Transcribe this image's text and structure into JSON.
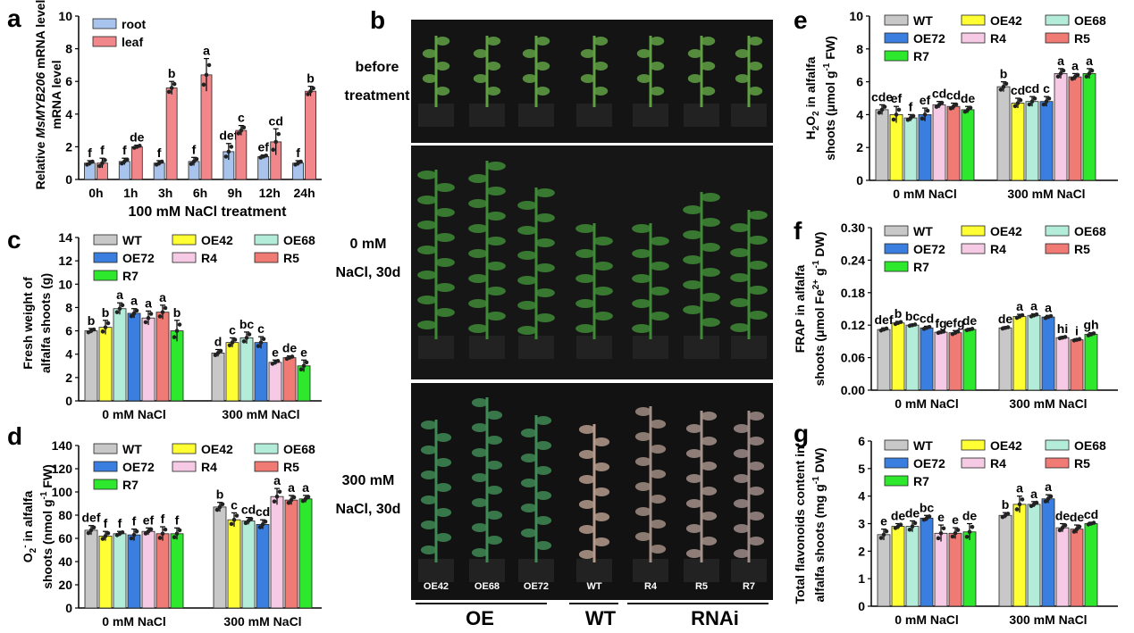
{
  "figure": {
    "panel_letters": [
      "a",
      "b",
      "c",
      "d",
      "e",
      "f",
      "g"
    ]
  },
  "colors": {
    "root": "#a9c4ec",
    "leaf": "#f1878b",
    "WT": "#c8c8c8",
    "OE42": "#ffff33",
    "OE68": "#b3ecd8",
    "OE72": "#3a7fe0",
    "R4": "#f6c9e4",
    "R5": "#f07a74",
    "R7": "#2ee82e"
  },
  "legend_genotypes": [
    "WT",
    "OE42",
    "OE68",
    "OE72",
    "R4",
    "R5",
    "R7"
  ],
  "photo": {
    "row_labels": [
      {
        "line1": "before",
        "line2": "treatment"
      },
      {
        "line1": "0 mM",
        "line2": "NaCl, 30d"
      },
      {
        "line1": "300 mM",
        "line2": "NaCl, 30d"
      }
    ],
    "pot_labels": [
      "OE42",
      "OE68",
      "OE72",
      "WT",
      "R4",
      "R5",
      "R7"
    ],
    "group_labels": [
      "OE",
      "WT",
      "RNAi"
    ]
  },
  "chart_data": [
    {
      "id": "a",
      "type": "bar",
      "ylabel_parts": [
        "Relative ",
        "MsMYB206",
        " mRNA level"
      ],
      "xlabel": "100 mM NaCl treatment",
      "categories": [
        "0h",
        "1h",
        "3h",
        "6h",
        "9h",
        "12h",
        "24h"
      ],
      "ylim": [
        0,
        10
      ],
      "yticks": [
        0,
        2,
        4,
        6,
        8,
        10
      ],
      "tick_decimals": 0,
      "legend_position": "top-left",
      "series": [
        {
          "name": "root",
          "values": [
            1.0,
            1.1,
            1.0,
            1.1,
            1.7,
            1.4,
            1.0
          ],
          "errors": [
            0.15,
            0.2,
            0.15,
            0.25,
            0.5,
            0.1,
            0.15
          ],
          "letters": [
            "f",
            "f",
            "f",
            "f",
            "def",
            "ef",
            "f"
          ]
        },
        {
          "name": "leaf",
          "values": [
            1.0,
            2.0,
            5.6,
            6.4,
            3.0,
            2.3,
            5.4
          ],
          "errors": [
            0.3,
            0.1,
            0.4,
            1.0,
            0.3,
            0.8,
            0.3
          ],
          "letters": [
            "f",
            "de",
            "b",
            "a",
            "c",
            "cd",
            "b"
          ]
        }
      ]
    },
    {
      "id": "c",
      "type": "bar",
      "ylabel_lines": [
        "Fresh weight of",
        "alfalfa shoots (g)"
      ],
      "categories": [
        "0 mM NaCl",
        "300 mM NaCl"
      ],
      "ylim": [
        0,
        14
      ],
      "yticks": [
        0,
        2,
        4,
        6,
        8,
        10,
        12,
        14
      ],
      "tick_decimals": 0,
      "groups": [
        {
          "values": [
            6.0,
            6.3,
            7.9,
            7.5,
            7.1,
            7.6,
            6.0
          ],
          "errors": [
            0.2,
            0.6,
            0.5,
            0.4,
            0.6,
            0.6,
            0.9
          ],
          "letters": [
            "b",
            "b",
            "a",
            "a",
            "a",
            "a",
            "b"
          ]
        },
        {
          "values": [
            4.1,
            5.0,
            5.4,
            5.0,
            3.3,
            3.7,
            3.0
          ],
          "errors": [
            0.3,
            0.4,
            0.5,
            0.5,
            0.2,
            0.15,
            0.5
          ],
          "letters": [
            "d",
            "c",
            "bc",
            "c",
            "e",
            "de",
            "e"
          ]
        }
      ]
    },
    {
      "id": "d",
      "type": "bar",
      "ylabel_lines": [
        "O2- in alfalfa",
        "shoots (nmol g-1 FW)"
      ],
      "categories": [
        "0 mM NaCl",
        "300 mM NaCl"
      ],
      "ylim": [
        0,
        140
      ],
      "yticks": [
        0,
        20,
        40,
        60,
        80,
        100,
        120,
        140
      ],
      "tick_decimals": 0,
      "groups": [
        {
          "values": [
            67,
            62,
            64,
            63,
            66,
            64,
            64
          ],
          "errors": [
            4,
            4,
            2,
            5,
            3,
            6,
            5
          ],
          "letters": [
            "def",
            "f",
            "f",
            "f",
            "ef",
            "f",
            "f"
          ]
        },
        {
          "values": [
            87,
            76,
            75,
            72,
            96,
            93,
            94
          ],
          "errors": [
            4,
            6,
            3,
            4,
            7,
            4,
            3
          ],
          "letters": [
            "b",
            "c",
            "cd",
            "cd",
            "a",
            "a",
            "a"
          ]
        }
      ]
    },
    {
      "id": "e",
      "type": "bar",
      "ylabel_lines": [
        "H2O2 in alfalfa",
        "shoots (μmol g-1 FW)"
      ],
      "categories": [
        "0 mM NaCl",
        "300 mM NaCl"
      ],
      "ylim": [
        0,
        10
      ],
      "yticks": [
        0,
        2,
        4,
        6,
        8,
        10
      ],
      "tick_decimals": 0,
      "groups": [
        {
          "values": [
            4.3,
            4.0,
            3.8,
            4.0,
            4.6,
            4.5,
            4.3
          ],
          "errors": [
            0.3,
            0.5,
            0.2,
            0.4,
            0.2,
            0.2,
            0.2
          ],
          "letters": [
            "cde",
            "ef",
            "f",
            "ef",
            "cd",
            "cd",
            "de"
          ]
        },
        {
          "values": [
            5.7,
            4.7,
            4.8,
            4.8,
            6.5,
            6.3,
            6.5
          ],
          "errors": [
            0.3,
            0.3,
            0.3,
            0.3,
            0.3,
            0.2,
            0.3
          ],
          "letters": [
            "b",
            "cd",
            "cd",
            "c",
            "a",
            "a",
            "a"
          ]
        }
      ]
    },
    {
      "id": "f",
      "type": "bar",
      "ylabel_lines": [
        "FRAP in alfalfa",
        "shoots (μmol Fe2+ g-1 DW)"
      ],
      "categories": [
        "0 mM NaCl",
        "300 mM NaCl"
      ],
      "ylim": [
        0,
        0.3
      ],
      "yticks": [
        0.0,
        0.06,
        0.12,
        0.18,
        0.24,
        0.3
      ],
      "tick_decimals": 2,
      "groups": [
        {
          "values": [
            0.112,
            0.124,
            0.12,
            0.115,
            0.107,
            0.106,
            0.112
          ],
          "errors": [
            0.003,
            0.003,
            0.002,
            0.003,
            0.002,
            0.004,
            0.002
          ],
          "letters": [
            "def",
            "b",
            "bc",
            "cd",
            "fg",
            "efg",
            "de"
          ]
        },
        {
          "values": [
            0.115,
            0.136,
            0.138,
            0.135,
            0.097,
            0.093,
            0.103
          ],
          "errors": [
            0.002,
            0.004,
            0.003,
            0.003,
            0.002,
            0.002,
            0.003
          ],
          "letters": [
            "de",
            "a",
            "a",
            "a",
            "hi",
            "i",
            "gh"
          ]
        }
      ]
    },
    {
      "id": "g",
      "type": "bar",
      "ylabel_lines": [
        "Total flavonoids content in",
        "alfalfa shoots (mg g-1 DW)"
      ],
      "categories": [
        "0 mM NaCl",
        "300 mM NaCl"
      ],
      "ylim": [
        0,
        6
      ],
      "yticks": [
        0,
        1,
        2,
        3,
        4,
        5,
        6
      ],
      "tick_decimals": 0,
      "groups": [
        {
          "values": [
            2.6,
            2.9,
            2.9,
            3.2,
            2.65,
            2.65,
            2.7
          ],
          "errors": [
            0.2,
            0.1,
            0.2,
            0.1,
            0.3,
            0.2,
            0.3
          ],
          "letters": [
            "e",
            "de",
            "de",
            "bc",
            "e",
            "e",
            "de"
          ]
        },
        {
          "values": [
            3.3,
            3.7,
            3.7,
            3.9,
            2.85,
            2.8,
            3.0
          ],
          "errors": [
            0.1,
            0.3,
            0.1,
            0.15,
            0.15,
            0.15,
            0.05
          ],
          "letters": [
            "b",
            "a",
            "a",
            "a",
            "de",
            "de",
            "cd"
          ]
        }
      ]
    }
  ]
}
